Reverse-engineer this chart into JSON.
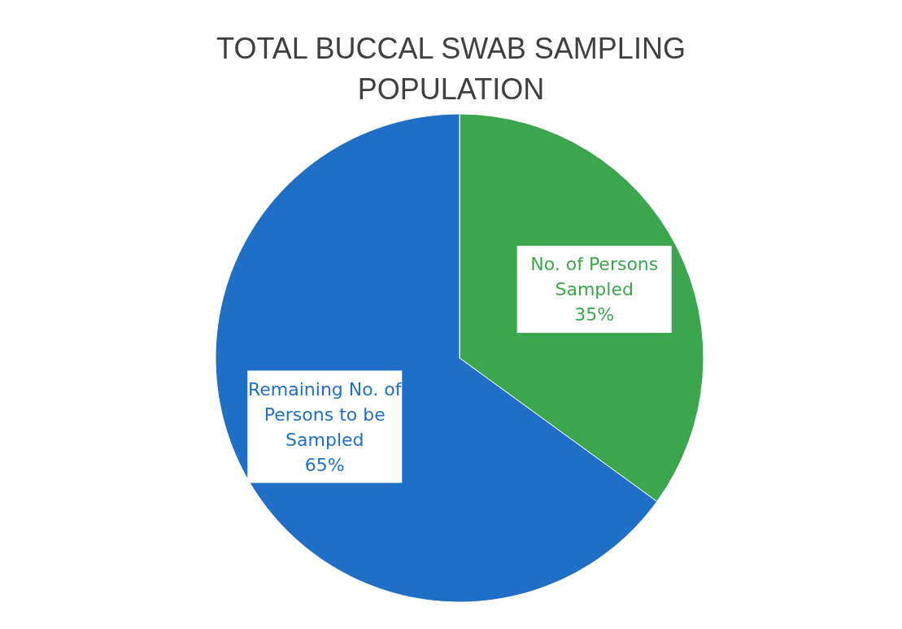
{
  "chart_data": {
    "type": "pie",
    "title": "TOTAL BUCCAL SWAB SAMPLING POPULATION",
    "categories": [
      "No. of Persons Sampled",
      "Remaining No. of Persons to be Sampled"
    ],
    "values": [
      35,
      65
    ],
    "colors": [
      "#3ca64e",
      "#1f6fc6"
    ],
    "value_labels": [
      "35%",
      "65%"
    ],
    "legend": false
  }
}
